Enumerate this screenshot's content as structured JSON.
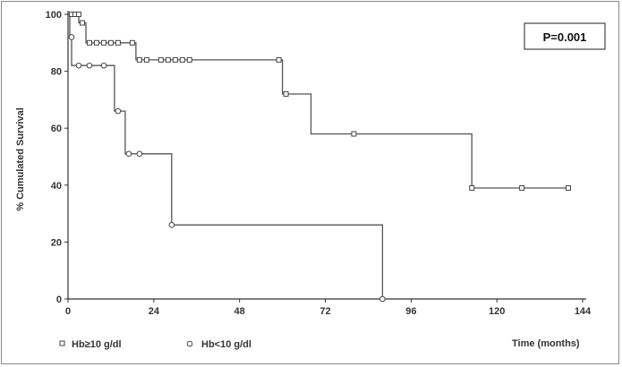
{
  "chart_data": {
    "type": "line",
    "subtype": "kaplan-meier",
    "title": "",
    "xlabel": "Time (months)",
    "ylabel": "% Cumulated Survival",
    "xlim": [
      0,
      144
    ],
    "ylim": [
      0,
      100
    ],
    "xticks": [
      0,
      24,
      48,
      72,
      96,
      120,
      144
    ],
    "yticks": [
      0,
      20,
      40,
      60,
      80,
      100
    ],
    "annotation": "P=0.001",
    "series": [
      {
        "name": "Hb≥10 g/dl",
        "marker": "square",
        "steps": [
          [
            0,
            100
          ],
          [
            3,
            100
          ],
          [
            3,
            97
          ],
          [
            5,
            97
          ],
          [
            5,
            90
          ],
          [
            19,
            90
          ],
          [
            19,
            84
          ],
          [
            60,
            84
          ],
          [
            60,
            72
          ],
          [
            68,
            72
          ],
          [
            68,
            58
          ],
          [
            113,
            58
          ],
          [
            113,
            39
          ],
          [
            140,
            39
          ]
        ],
        "censored": [
          [
            1,
            100
          ],
          [
            2,
            100
          ],
          [
            3,
            100
          ],
          [
            4,
            97
          ],
          [
            6,
            90
          ],
          [
            8,
            90
          ],
          [
            10,
            90
          ],
          [
            12,
            90
          ],
          [
            14,
            90
          ],
          [
            18,
            90
          ],
          [
            20,
            84
          ],
          [
            22,
            84
          ],
          [
            26,
            84
          ],
          [
            28,
            84
          ],
          [
            30,
            84
          ],
          [
            32,
            84
          ],
          [
            34,
            84
          ],
          [
            59,
            84
          ],
          [
            61,
            72
          ],
          [
            80,
            58
          ],
          [
            113,
            39
          ],
          [
            127,
            39
          ],
          [
            140,
            39
          ]
        ]
      },
      {
        "name": "Hb<10 g/dl",
        "marker": "circle",
        "steps": [
          [
            0,
            100
          ],
          [
            0.5,
            100
          ],
          [
            0.5,
            92
          ],
          [
            1,
            92
          ],
          [
            1,
            82
          ],
          [
            13,
            82
          ],
          [
            13,
            66
          ],
          [
            16,
            66
          ],
          [
            16,
            51
          ],
          [
            29,
            51
          ],
          [
            29,
            26
          ],
          [
            88,
            26
          ],
          [
            88,
            0
          ]
        ],
        "censored": [
          [
            1,
            92
          ],
          [
            3,
            82
          ],
          [
            6,
            82
          ],
          [
            10,
            82
          ],
          [
            14,
            66
          ],
          [
            17,
            51
          ],
          [
            20,
            51
          ],
          [
            29,
            26
          ],
          [
            88,
            0
          ]
        ]
      }
    ],
    "legend": {
      "placement": "bottom-left",
      "entries": [
        "Hb≥10 g/dl",
        "Hb<10 g/dl"
      ]
    }
  }
}
